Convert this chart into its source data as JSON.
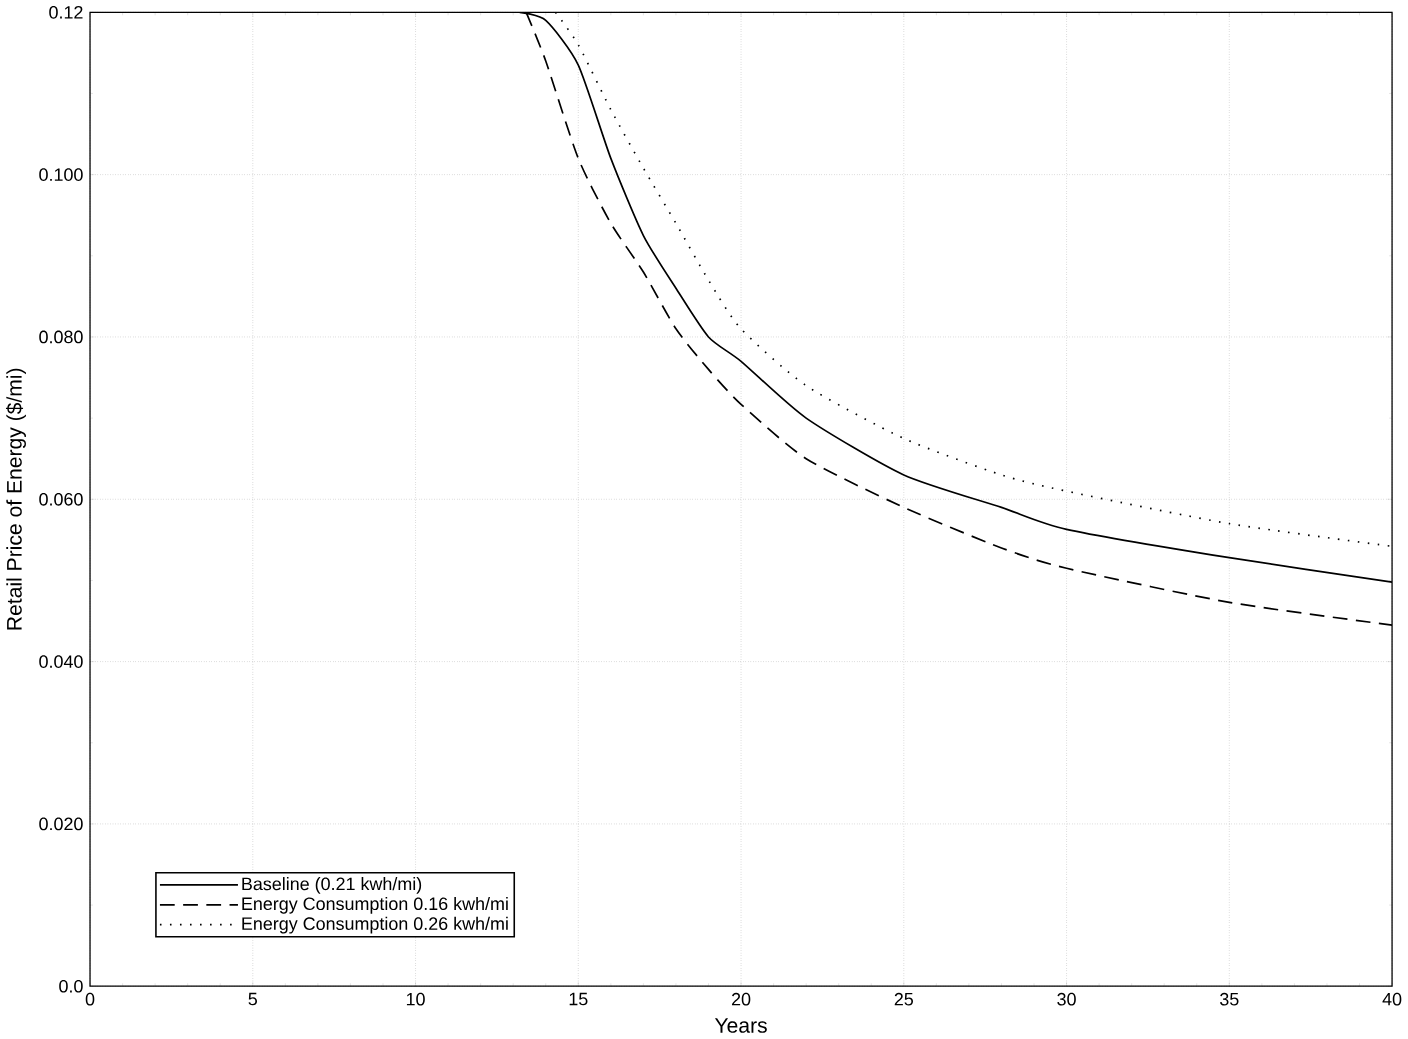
{
  "chart_data": {
    "type": "line",
    "xlabel": "Years",
    "ylabel": "Retail Price of Energy ($/mi)",
    "xlim": [
      0,
      40
    ],
    "ylim": [
      0,
      0.12
    ],
    "xticks": [
      0,
      5,
      10,
      15,
      20,
      25,
      30,
      35,
      40
    ],
    "yticks": [
      {
        "value": 0,
        "label": "0.0"
      },
      {
        "value": 0.02,
        "label": "0.020"
      },
      {
        "value": 0.04,
        "label": "0.040"
      },
      {
        "value": 0.06,
        "label": "0.060"
      },
      {
        "value": 0.08,
        "label": "0.080"
      },
      {
        "value": 0.1,
        "label": "0.100"
      },
      {
        "value": 0.12,
        "label": "0.12"
      }
    ],
    "grid": true,
    "legend": "bottom left",
    "series": [
      {
        "name": "Baseline (0.21 kwh/mi)",
        "color": "#000000",
        "line_style": "solid",
        "x": [
          13.2,
          14,
          15,
          16,
          17,
          18,
          19,
          20,
          22,
          25,
          28,
          30,
          35,
          40
        ],
        "values": [
          0.12,
          0.119,
          0.1135,
          0.102,
          0.0925,
          0.086,
          0.08,
          0.077,
          0.07,
          0.063,
          0.059,
          0.0563,
          0.0528,
          0.0498
        ]
      },
      {
        "name": "Energy Consumption 0.16 kwh/mi",
        "color": "#000000",
        "line_style": "dashed",
        "x": [
          13.4,
          14,
          15,
          16,
          17,
          18,
          19,
          20,
          22,
          25,
          28,
          30,
          35,
          40
        ],
        "values": [
          0.12,
          0.114,
          0.102,
          0.094,
          0.088,
          0.081,
          0.076,
          0.0717,
          0.065,
          0.059,
          0.054,
          0.0515,
          0.0473,
          0.0445
        ]
      },
      {
        "name": "Energy Consumption 0.26 kwh/mi",
        "color": "#000000",
        "line_style": "dotted",
        "x": [
          14.3,
          15,
          16,
          17,
          18,
          19,
          20,
          22,
          25,
          28,
          30,
          35,
          40
        ],
        "values": [
          0.12,
          0.116,
          0.108,
          0.1008,
          0.094,
          0.087,
          0.081,
          0.074,
          0.0675,
          0.063,
          0.061,
          0.057,
          0.0542
        ]
      }
    ]
  }
}
